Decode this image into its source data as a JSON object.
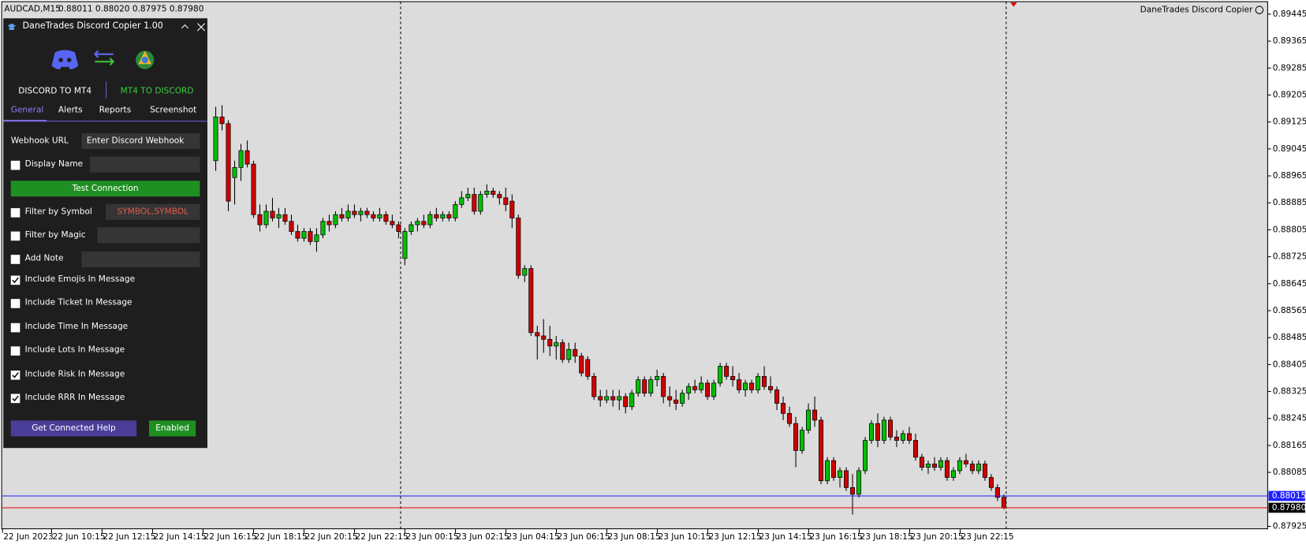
{
  "header": {
    "symbol": "AUDCAD,M15",
    "quote": "0.88011 0.88020 0.87975 0.87980",
    "indicator": "DaneTrades Discord Copier"
  },
  "panel": {
    "title": "DaneTrades Discord Copier 1.00",
    "mode_left": "DISCORD TO MT4",
    "mode_right": "MT4 TO DISCORD",
    "tabs": [
      "General",
      "Alerts",
      "Reports",
      "Screenshot"
    ],
    "webhook_label": "Webhook URL",
    "webhook_placeholder": "Enter Discord Webhook",
    "display_name": "Display Name",
    "test_button": "Test Connection",
    "filter_symbol": "Filter by Symbol",
    "symbol_placeholder": "SYMBOL,SYMBOL",
    "filter_magic": "Filter by Magic",
    "add_note": "Add Note",
    "options": [
      {
        "label": "Include Emojis In Message",
        "checked": true
      },
      {
        "label": "Include Ticket In Message",
        "checked": false
      },
      {
        "label": "Include Time In Message",
        "checked": false
      },
      {
        "label": "Include Lots In Message",
        "checked": false
      },
      {
        "label": "Include Risk In Message",
        "checked": true
      },
      {
        "label": "Include RRR In Message",
        "checked": true
      }
    ],
    "help_button": "Get Connected Help",
    "enabled_button": "Enabled"
  },
  "chart_data": {
    "type": "candlestick",
    "up_color": "#00c000",
    "down_color": "#d00000",
    "ylim": [
      0.87925,
      0.89445
    ],
    "yticks": [
      0.89445,
      0.89365,
      0.89285,
      0.89205,
      0.89125,
      0.89045,
      0.88965,
      0.88885,
      0.88805,
      0.88725,
      0.88645,
      0.88565,
      0.88485,
      0.88405,
      0.88325,
      0.88245,
      0.88165,
      0.88085,
      0.87925
    ],
    "x_labels": [
      "22 Jun 2023",
      "22 Jun 10:15",
      "22 Jun 12:15",
      "22 Jun 14:15",
      "22 Jun 16:15",
      "22 Jun 18:15",
      "22 Jun 20:15",
      "22 Jun 22:15",
      "23 Jun 00:15",
      "23 Jun 02:15",
      "23 Jun 04:15",
      "23 Jun 06:15",
      "23 Jun 08:15",
      "23 Jun 10:15",
      "23 Jun 12:15",
      "23 Jun 14:15",
      "23 Jun 16:15",
      "23 Jun 18:15",
      "23 Jun 20:15",
      "23 Jun 22:15"
    ],
    "price_lines": [
      {
        "value": 0.88015,
        "color": "#2020ff"
      },
      {
        "value": 0.8798,
        "label": "0.87980",
        "color": "#e00000"
      }
    ],
    "candles": [
      [
        0.8901,
        0.8917,
        0.8898,
        0.8914
      ],
      [
        0.8914,
        0.89175,
        0.891,
        0.8912
      ],
      [
        0.8912,
        0.8913,
        0.8886,
        0.8889
      ],
      [
        0.8896,
        0.8901,
        0.8888,
        0.8899
      ],
      [
        0.8899,
        0.8906,
        0.8895,
        0.8904
      ],
      [
        0.8904,
        0.8907,
        0.8899,
        0.89
      ],
      [
        0.89,
        0.8901,
        0.8884,
        0.8885
      ],
      [
        0.8885,
        0.8888,
        0.888,
        0.8882
      ],
      [
        0.8882,
        0.8888,
        0.8881,
        0.8886
      ],
      [
        0.8886,
        0.889,
        0.8883,
        0.8884
      ],
      [
        0.8884,
        0.8887,
        0.8881,
        0.8885
      ],
      [
        0.8885,
        0.8887,
        0.8882,
        0.8883
      ],
      [
        0.8883,
        0.8885,
        0.8879,
        0.888
      ],
      [
        0.888,
        0.8882,
        0.8877,
        0.8878
      ],
      [
        0.8878,
        0.8881,
        0.8877,
        0.888
      ],
      [
        0.888,
        0.8881,
        0.8876,
        0.8877
      ],
      [
        0.8877,
        0.8881,
        0.8874,
        0.8879
      ],
      [
        0.8879,
        0.8884,
        0.8878,
        0.8883
      ],
      [
        0.8883,
        0.8885,
        0.888,
        0.8882
      ],
      [
        0.8882,
        0.8886,
        0.8881,
        0.8885
      ],
      [
        0.8885,
        0.8887,
        0.8883,
        0.8884
      ],
      [
        0.8884,
        0.8888,
        0.8883,
        0.8886
      ],
      [
        0.8886,
        0.8888,
        0.8884,
        0.8885
      ],
      [
        0.8885,
        0.8887,
        0.8883,
        0.8886
      ],
      [
        0.8886,
        0.8887,
        0.8884,
        0.8885
      ],
      [
        0.8885,
        0.8886,
        0.8883,
        0.8884
      ],
      [
        0.8884,
        0.8887,
        0.8883,
        0.8885
      ],
      [
        0.8885,
        0.8886,
        0.8882,
        0.8883
      ],
      [
        0.8883,
        0.8885,
        0.8881,
        0.8882
      ],
      [
        0.8882,
        0.8883,
        0.8878,
        0.888
      ],
      [
        0.8872,
        0.8881,
        0.887,
        0.888
      ],
      [
        0.888,
        0.8883,
        0.8879,
        0.8882
      ],
      [
        0.8882,
        0.8884,
        0.888,
        0.8883
      ],
      [
        0.8883,
        0.8885,
        0.8881,
        0.8882
      ],
      [
        0.8882,
        0.8886,
        0.8881,
        0.8885
      ],
      [
        0.8885,
        0.8887,
        0.8883,
        0.8884
      ],
      [
        0.8884,
        0.8886,
        0.8883,
        0.8885
      ],
      [
        0.8885,
        0.8886,
        0.8883,
        0.8884
      ],
      [
        0.8884,
        0.8889,
        0.8883,
        0.8888
      ],
      [
        0.8888,
        0.8892,
        0.8887,
        0.889
      ],
      [
        0.889,
        0.8893,
        0.8889,
        0.8891
      ],
      [
        0.8891,
        0.8893,
        0.8885,
        0.8886
      ],
      [
        0.8886,
        0.8892,
        0.8885,
        0.8891
      ],
      [
        0.8891,
        0.8894,
        0.889,
        0.8892
      ],
      [
        0.8892,
        0.8893,
        0.889,
        0.8891
      ],
      [
        0.8891,
        0.8892,
        0.8888,
        0.889
      ],
      [
        0.889,
        0.8893,
        0.8886,
        0.8888
      ],
      [
        0.8889,
        0.8891,
        0.8881,
        0.8884
      ],
      [
        0.8884,
        0.8885,
        0.8866,
        0.8867
      ],
      [
        0.8867,
        0.887,
        0.8865,
        0.8869
      ],
      [
        0.8869,
        0.887,
        0.8849,
        0.885
      ],
      [
        0.885,
        0.8852,
        0.8842,
        0.8849
      ],
      [
        0.8849,
        0.8854,
        0.8844,
        0.8848
      ],
      [
        0.8848,
        0.8852,
        0.8843,
        0.8846
      ],
      [
        0.8846,
        0.8849,
        0.8842,
        0.8847
      ],
      [
        0.8847,
        0.8848,
        0.8841,
        0.8842
      ],
      [
        0.8842,
        0.8847,
        0.8841,
        0.8845
      ],
      [
        0.8845,
        0.8847,
        0.8841,
        0.8843
      ],
      [
        0.8843,
        0.8844,
        0.8837,
        0.8838
      ],
      [
        0.8842,
        0.8843,
        0.8836,
        0.8837
      ],
      [
        0.8837,
        0.8838,
        0.883,
        0.8831
      ],
      [
        0.8831,
        0.8833,
        0.8828,
        0.883
      ],
      [
        0.883,
        0.8833,
        0.8829,
        0.8831
      ],
      [
        0.8831,
        0.8833,
        0.8828,
        0.883
      ],
      [
        0.883,
        0.8833,
        0.8827,
        0.8831
      ],
      [
        0.8831,
        0.8832,
        0.8826,
        0.8828
      ],
      [
        0.8828,
        0.8833,
        0.8827,
        0.8832
      ],
      [
        0.8832,
        0.8837,
        0.8831,
        0.8836
      ],
      [
        0.8836,
        0.8837,
        0.8831,
        0.8832
      ],
      [
        0.8832,
        0.8837,
        0.8831,
        0.8836
      ],
      [
        0.8836,
        0.8839,
        0.8834,
        0.8837
      ],
      [
        0.8837,
        0.8838,
        0.8829,
        0.8831
      ],
      [
        0.8831,
        0.8834,
        0.8828,
        0.883
      ],
      [
        0.883,
        0.8833,
        0.8827,
        0.8829
      ],
      [
        0.8829,
        0.8833,
        0.8828,
        0.8832
      ],
      [
        0.8832,
        0.8835,
        0.883,
        0.8834
      ],
      [
        0.8834,
        0.8836,
        0.8832,
        0.8833
      ],
      [
        0.8833,
        0.8837,
        0.8832,
        0.8835
      ],
      [
        0.8835,
        0.8836,
        0.883,
        0.8831
      ],
      [
        0.8831,
        0.8836,
        0.883,
        0.8835
      ],
      [
        0.8835,
        0.8841,
        0.8834,
        0.884
      ],
      [
        0.884,
        0.8841,
        0.8836,
        0.8837
      ],
      [
        0.8837,
        0.884,
        0.8834,
        0.8836
      ],
      [
        0.8836,
        0.8838,
        0.8832,
        0.8833
      ],
      [
        0.8833,
        0.8836,
        0.8831,
        0.8835
      ],
      [
        0.8835,
        0.8836,
        0.8832,
        0.8833
      ],
      [
        0.8833,
        0.8838,
        0.8832,
        0.8837
      ],
      [
        0.8837,
        0.884,
        0.8833,
        0.8834
      ],
      [
        0.8834,
        0.8837,
        0.8832,
        0.8833
      ],
      [
        0.8833,
        0.8834,
        0.8827,
        0.8829
      ],
      [
        0.8829,
        0.8831,
        0.8824,
        0.8826
      ],
      [
        0.8826,
        0.8828,
        0.8822,
        0.8823
      ],
      [
        0.8823,
        0.8825,
        0.881,
        0.8815
      ],
      [
        0.8815,
        0.8822,
        0.8814,
        0.8821
      ],
      [
        0.8821,
        0.8829,
        0.882,
        0.8827
      ],
      [
        0.8827,
        0.8831,
        0.8822,
        0.8824
      ],
      [
        0.8824,
        0.8825,
        0.8805,
        0.8806
      ],
      [
        0.8806,
        0.8813,
        0.8805,
        0.8812
      ],
      [
        0.8812,
        0.8813,
        0.8806,
        0.8807
      ],
      [
        0.8807,
        0.881,
        0.8804,
        0.8809
      ],
      [
        0.8809,
        0.881,
        0.8803,
        0.8804
      ],
      [
        0.8804,
        0.8808,
        0.8796,
        0.8802
      ],
      [
        0.8802,
        0.881,
        0.8801,
        0.8809
      ],
      [
        0.8809,
        0.8819,
        0.8808,
        0.8818
      ],
      [
        0.8818,
        0.8824,
        0.8817,
        0.8823
      ],
      [
        0.8823,
        0.8826,
        0.8816,
        0.8818
      ],
      [
        0.8818,
        0.8825,
        0.8817,
        0.8824
      ],
      [
        0.8824,
        0.8825,
        0.8818,
        0.8819
      ],
      [
        0.8819,
        0.8821,
        0.8816,
        0.8818
      ],
      [
        0.8818,
        0.8821,
        0.8817,
        0.882
      ],
      [
        0.882,
        0.8822,
        0.8817,
        0.8818
      ],
      [
        0.8818,
        0.882,
        0.8812,
        0.8813
      ],
      [
        0.8813,
        0.8814,
        0.8809,
        0.881
      ],
      [
        0.881,
        0.8812,
        0.8808,
        0.8811
      ],
      [
        0.8811,
        0.8813,
        0.8809,
        0.881
      ],
      [
        0.881,
        0.8813,
        0.8809,
        0.8812
      ],
      [
        0.8812,
        0.8813,
        0.8806,
        0.8807
      ],
      [
        0.8807,
        0.881,
        0.8806,
        0.8809
      ],
      [
        0.8809,
        0.8813,
        0.8808,
        0.8812
      ],
      [
        0.8812,
        0.8814,
        0.881,
        0.8811
      ],
      [
        0.8811,
        0.8812,
        0.8808,
        0.8809
      ],
      [
        0.8809,
        0.8812,
        0.8808,
        0.8811
      ],
      [
        0.8811,
        0.8812,
        0.8806,
        0.8807
      ],
      [
        0.8807,
        0.8808,
        0.8803,
        0.8804
      ],
      [
        0.8804,
        0.8805,
        0.88,
        0.88011
      ],
      [
        0.88011,
        0.8802,
        0.87975,
        0.8798
      ]
    ]
  }
}
